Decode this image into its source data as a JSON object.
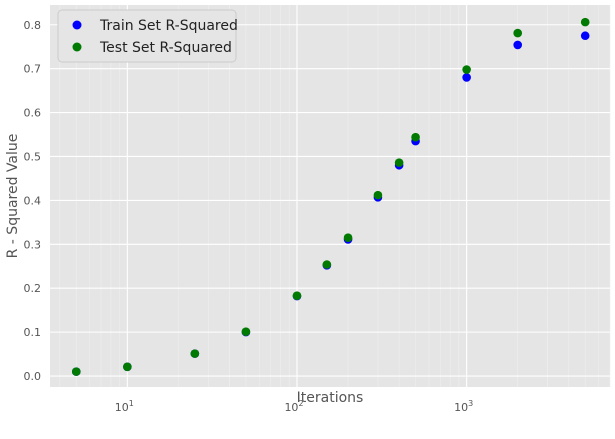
{
  "chart_data": {
    "type": "scatter",
    "title": "",
    "xlabel": "Iterations",
    "ylabel": "R - Squared Value",
    "x_scale": "log",
    "xlim": [
      3.5,
      7000
    ],
    "ylim": [
      -0.025,
      0.845
    ],
    "x_ticks": [
      {
        "value": 10,
        "base": "10",
        "exp": "1"
      },
      {
        "value": 100,
        "base": "10",
        "exp": "2"
      },
      {
        "value": 1000,
        "base": "10",
        "exp": "3"
      }
    ],
    "y_ticks": [
      "0.0",
      "0.1",
      "0.2",
      "0.3",
      "0.4",
      "0.5",
      "0.6",
      "0.7",
      "0.8"
    ],
    "grid": true,
    "legend_position": "top-left",
    "x": [
      5,
      10,
      25,
      50,
      100,
      150,
      200,
      300,
      400,
      500,
      1000,
      2000,
      5000
    ],
    "series": [
      {
        "name": "Train Set R-Squared",
        "color": "#0000ff",
        "values": [
          0.01,
          0.021,
          0.051,
          0.1,
          0.182,
          0.252,
          0.311,
          0.407,
          0.48,
          0.535,
          0.68,
          0.754,
          0.775
        ]
      },
      {
        "name": "Test Set R-Squared",
        "color": "#007a00",
        "values": [
          0.01,
          0.021,
          0.051,
          0.101,
          0.183,
          0.254,
          0.315,
          0.412,
          0.486,
          0.544,
          0.698,
          0.781,
          0.806
        ]
      }
    ]
  }
}
